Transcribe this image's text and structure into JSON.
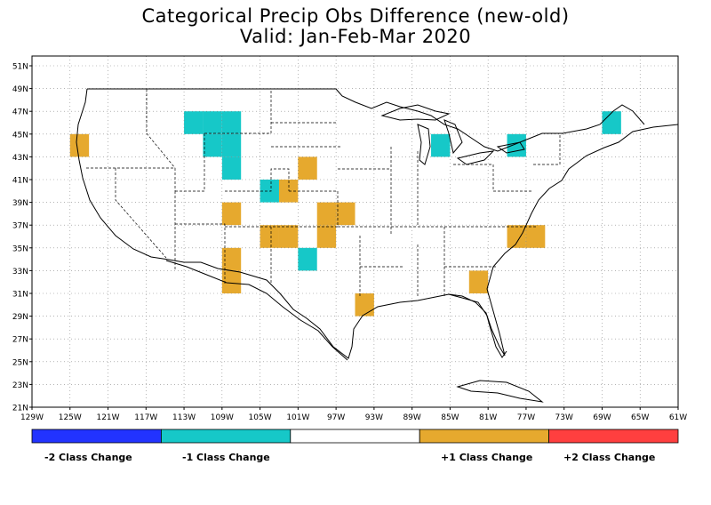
{
  "title": {
    "line1": "Categorical Precip Obs Difference (new-old)",
    "line2": "Valid: Jan-Feb-Mar 2020"
  },
  "lat_labels": [
    "51N",
    "49N",
    "47N",
    "45N",
    "43N",
    "41N",
    "39N",
    "37N",
    "35N",
    "33N",
    "31N",
    "29N",
    "27N",
    "25N",
    "23N",
    "21N"
  ],
  "lon_labels": [
    "129W",
    "125W",
    "121W",
    "117W",
    "113W",
    "109W",
    "105W",
    "101W",
    "97W",
    "93W",
    "89W",
    "85W",
    "81W",
    "77W",
    "73W",
    "69W",
    "65W",
    "61W"
  ],
  "legend": {
    "items": [
      {
        "label": "-2 Class Change",
        "color": "#2233ff"
      },
      {
        "label": "-1 Class Change",
        "color": "#16c8c8"
      },
      {
        "label": "",
        "color": "#ffffff"
      },
      {
        "label": "+1 Class Change",
        "color": "#e6a92e"
      },
      {
        "label": "+2 Class Change",
        "color": "#ff3f3f"
      }
    ]
  },
  "colors": {
    "minus2": "#2233ff",
    "minus1": "#16c8c8",
    "plus1": "#e6a92e",
    "plus2": "#ff3f3f"
  },
  "cells": [
    {
      "lon": -124,
      "lat": 44,
      "cls": "plus1"
    },
    {
      "lon": -112,
      "lat": 46,
      "cls": "minus1"
    },
    {
      "lon": -110,
      "lat": 46,
      "cls": "minus1"
    },
    {
      "lon": -110,
      "lat": 44,
      "cls": "minus1"
    },
    {
      "lon": -108,
      "lat": 46,
      "cls": "minus1"
    },
    {
      "lon": -108,
      "lat": 44,
      "cls": "minus1"
    },
    {
      "lon": -108,
      "lat": 42,
      "cls": "minus1"
    },
    {
      "lon": -104,
      "lat": 40,
      "cls": "minus1"
    },
    {
      "lon": -102,
      "lat": 40,
      "cls": "plus1"
    },
    {
      "lon": -100,
      "lat": 42,
      "cls": "plus1"
    },
    {
      "lon": -108,
      "lat": 38,
      "cls": "plus1"
    },
    {
      "lon": -104,
      "lat": 36,
      "cls": "plus1"
    },
    {
      "lon": -102,
      "lat": 36,
      "cls": "plus1"
    },
    {
      "lon": -98,
      "lat": 38,
      "cls": "plus1"
    },
    {
      "lon": -96,
      "lat": 38,
      "cls": "plus1"
    },
    {
      "lon": -98,
      "lat": 36,
      "cls": "plus1"
    },
    {
      "lon": -108,
      "lat": 34,
      "cls": "plus1"
    },
    {
      "lon": -108,
      "lat": 32,
      "cls": "plus1"
    },
    {
      "lon": -100,
      "lat": 34,
      "cls": "minus1"
    },
    {
      "lon": -94,
      "lat": 30,
      "cls": "plus1"
    },
    {
      "lon": -86,
      "lat": 44,
      "cls": "minus1"
    },
    {
      "lon": -82,
      "lat": 32,
      "cls": "plus1"
    },
    {
      "lon": -78,
      "lat": 44,
      "cls": "minus1"
    },
    {
      "lon": -78,
      "lat": 36,
      "cls": "plus1"
    },
    {
      "lon": -76,
      "lat": 36,
      "cls": "plus1"
    },
    {
      "lon": -68,
      "lat": 46,
      "cls": "minus1"
    }
  ]
}
